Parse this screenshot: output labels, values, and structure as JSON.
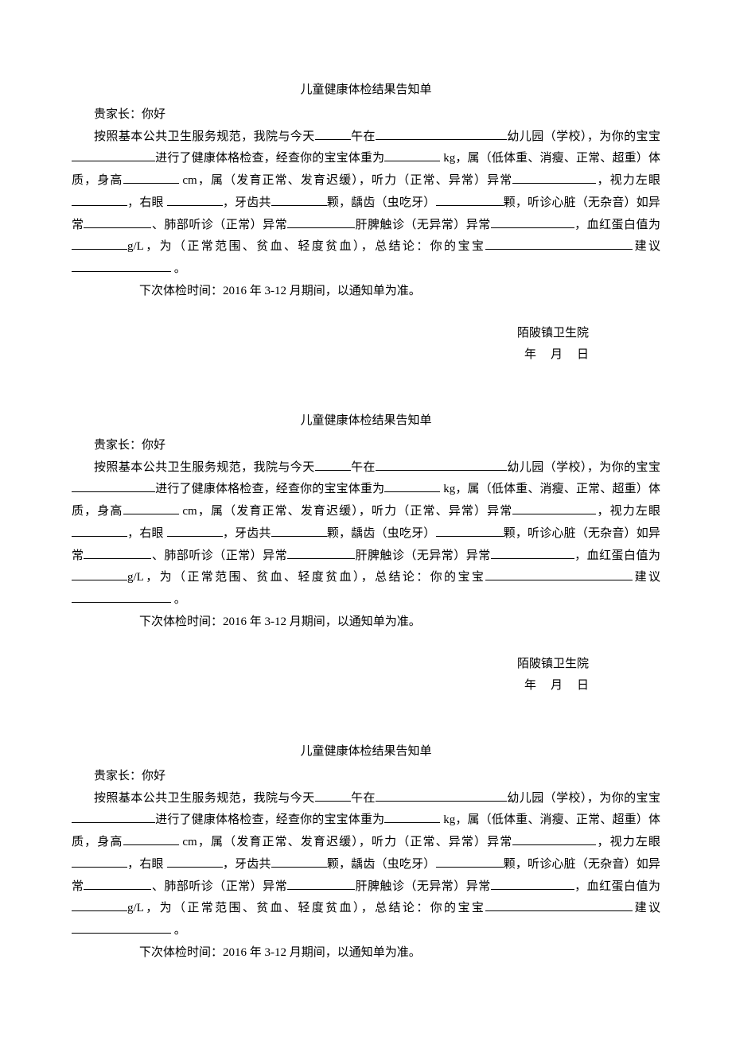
{
  "form": {
    "title": "儿童健康体检结果告知单",
    "greeting": "贵家长：你好",
    "line1_a": "按照基本公共卫生服务规范，我院与今天",
    "line1_b": "午在",
    "line1_c": "幼",
    "line2_a": "儿园（学校），为你的宝宝",
    "line2_b": "进行了健康体格检查，经查你的宝宝体",
    "line3_a": "重为",
    "line3_b": " kg，属（低体重、消瘦、正常、超重）体质，身高",
    "line3_c": " cm，",
    "line4_a": "属（发育正常、发育迟缓），听力（正常、异常）异常",
    "line4_b": "，视力左眼",
    "line4_c": "，",
    "line5_a": "右眼 ",
    "line5_b": "，牙齿共",
    "line5_c": "颗，龋齿（虫吃牙）",
    "line5_d": "颗，听诊心脏",
    "line6_a": "（无杂音）如异常",
    "line6_b": "、肺部听诊（正常）异常",
    "line6_c": "肝脾触诊（无",
    "line7_a": "异常）异常",
    "line7_b": "，血红蛋白值为",
    "line7_c": "g/L，为（正常范围、贫血、轻",
    "line8_a": "度贫血），总结论：你的宝宝",
    "line8_b": "建议",
    "line8_c": " 。",
    "next_check": "下次体检时间：2016 年 3-12 月期间，以通知单为准。",
    "sig_org": "陌陂镇卫生院",
    "sig_date_y": "年",
    "sig_date_m": "月",
    "sig_date_d": "日"
  }
}
